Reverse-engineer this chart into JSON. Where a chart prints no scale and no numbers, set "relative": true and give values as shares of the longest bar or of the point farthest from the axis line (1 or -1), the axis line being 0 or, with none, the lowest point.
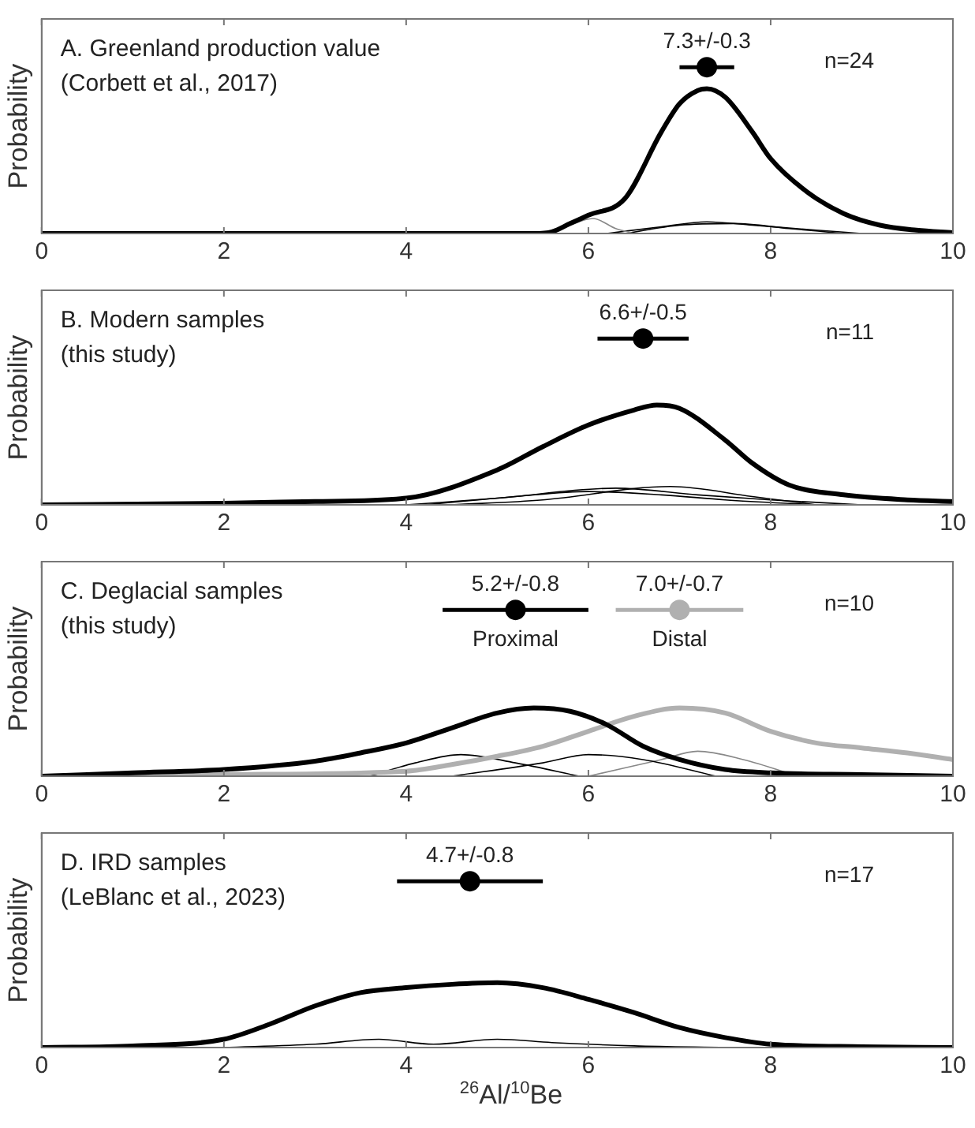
{
  "chart_data": [
    {
      "type": "line",
      "title": "A. Greenland production value",
      "subtitle": "(Corbett et al., 2017)",
      "ylabel": "Probability",
      "relative": true,
      "tick_labels": "x",
      "xlim": [
        0,
        10
      ],
      "xticks": [
        0,
        2,
        4,
        6,
        8,
        10
      ],
      "annotations": [
        {
          "text": "7.3+/-0.3",
          "x": 7.3,
          "y": 1
        },
        "n=24"
      ],
      "series": [
        {
          "color": "#000000",
          "x": [
            0,
            5.4,
            5.6,
            5.8,
            6.0,
            6.4,
            6.8,
            7.0,
            7.2,
            7.3,
            7.5,
            7.8,
            8.0,
            8.4,
            8.8,
            9.2,
            9.6,
            10
          ],
          "values": [
            0,
            0,
            0.01,
            0.06,
            0.11,
            0.21,
            0.61,
            0.78,
            0.86,
            0.87,
            0.82,
            0.61,
            0.45,
            0.25,
            0.12,
            0.05,
            0.02,
            0.005
          ]
        },
        {
          "color": "#888888",
          "x": [
            5.6,
            5.8,
            6.05,
            6.3,
            6.5
          ],
          "values": [
            0,
            0.05,
            0.09,
            0.03,
            0
          ]
        },
        {
          "color": "#000000",
          "x": [
            6.2,
            6.8,
            7.3,
            7.8,
            8.5,
            9.0
          ],
          "values": [
            0,
            0.04,
            0.07,
            0.05,
            0.02,
            0
          ]
        },
        {
          "color": "#000000",
          "x": [
            6.4,
            7.0,
            7.6,
            8.2,
            8.8
          ],
          "values": [
            0,
            0.05,
            0.06,
            0.03,
            0
          ]
        },
        {
          "type": "scatter",
          "marker": "circle",
          "color": "#000000",
          "x": [
            7.3
          ],
          "values": [
            1
          ],
          "xerrors": [
            0.3
          ]
        }
      ]
    },
    {
      "type": "line",
      "title": "B. Modern samples",
      "subtitle": "(this study)",
      "ylabel": "Probability",
      "relative": true,
      "tick_labels": "x",
      "xlim": [
        0,
        10
      ],
      "xticks": [
        0,
        2,
        4,
        6,
        8,
        10
      ],
      "annotations": [
        {
          "text": "6.6+/-0.5",
          "x": 6.6,
          "y": 1
        },
        "n=11"
      ],
      "series": [
        {
          "color": "#000000",
          "x": [
            0,
            2,
            3,
            4,
            5,
            5.5,
            6,
            6.5,
            6.75,
            7,
            7.5,
            7.8,
            8.2,
            8.8,
            9.5,
            10
          ],
          "values": [
            0,
            0.01,
            0.02,
            0.04,
            0.21,
            0.35,
            0.48,
            0.57,
            0.6,
            0.58,
            0.39,
            0.25,
            0.12,
            0.06,
            0.03,
            0.02
          ]
        },
        {
          "color": "#000000",
          "x": [
            4,
            5,
            6.3,
            7.2,
            8,
            9
          ],
          "values": [
            0,
            0.04,
            0.1,
            0.06,
            0.03,
            0
          ]
        },
        {
          "color": "#000000",
          "x": [
            4.5,
            5.5,
            6.9,
            7.8,
            8.5
          ],
          "values": [
            0,
            0.03,
            0.11,
            0.05,
            0
          ]
        },
        {
          "color": "#000000",
          "x": [
            4.2,
            5.2,
            6.0,
            6.8,
            7.5,
            8.5
          ],
          "values": [
            0,
            0.05,
            0.08,
            0.06,
            0.03,
            0
          ]
        },
        {
          "type": "scatter",
          "marker": "circle",
          "color": "#000000",
          "x": [
            6.6
          ],
          "values": [
            1
          ],
          "xerrors": [
            0.5
          ]
        }
      ]
    },
    {
      "type": "line",
      "title": "C. Deglacial samples",
      "subtitle": "(this study)",
      "ylabel": "Probability",
      "relative": true,
      "tick_labels": "x",
      "xlim": [
        0,
        10
      ],
      "xticks": [
        0,
        2,
        4,
        6,
        8,
        10
      ],
      "annotations": [
        {
          "text": "5.2+/-0.8",
          "x": 5.2,
          "y": 1
        },
        {
          "text": "7.0+/-0.7",
          "x": 7.0,
          "y": 1
        },
        "n=10"
      ],
      "series": [
        {
          "color": "#000000",
          "x": [
            0,
            1,
            2,
            3,
            3.5,
            4,
            4.5,
            5,
            5.4,
            5.8,
            6.2,
            6.6,
            7,
            7.5,
            8,
            9,
            10
          ],
          "values": [
            0,
            0.02,
            0.04,
            0.09,
            0.14,
            0.2,
            0.29,
            0.38,
            0.41,
            0.39,
            0.31,
            0.18,
            0.1,
            0.04,
            0.02,
            0.01,
            0
          ]
        },
        {
          "color": "#b0b0b0",
          "x": [
            0,
            2,
            4,
            4.5,
            5,
            5.5,
            6,
            6.5,
            7,
            7.5,
            8,
            8.5,
            9,
            9.5,
            10
          ],
          "values": [
            0,
            0.01,
            0.03,
            0.07,
            0.12,
            0.18,
            0.27,
            0.36,
            0.41,
            0.38,
            0.27,
            0.2,
            0.17,
            0.14,
            0.1
          ]
        },
        {
          "color": "#000000",
          "x": [
            3.6,
            4.1,
            4.6,
            5.2,
            5.9
          ],
          "values": [
            0,
            0.08,
            0.13,
            0.08,
            0
          ]
        },
        {
          "color": "#000000",
          "x": [
            4.5,
            5.5,
            6.0,
            6.6,
            7.4
          ],
          "values": [
            0,
            0.08,
            0.13,
            0.1,
            0
          ]
        },
        {
          "color": "#888888",
          "x": [
            6,
            6.8,
            7.2,
            7.7,
            8.3
          ],
          "values": [
            0,
            0.1,
            0.15,
            0.1,
            0
          ]
        },
        {
          "type": "scatter",
          "marker": "circle",
          "name": "Proximal",
          "color": "#000000",
          "x": [
            5.2
          ],
          "values": [
            1
          ],
          "xerrors": [
            0.8
          ]
        },
        {
          "type": "scatter",
          "marker": "circle",
          "name": "Distal",
          "color": "#b0b0b0",
          "x": [
            7.0
          ],
          "values": [
            1
          ],
          "xerrors": [
            0.7
          ]
        }
      ]
    },
    {
      "type": "line",
      "title": "D. IRD samples",
      "subtitle": "(LeBlanc et al., 2023)",
      "ylabel": "Probability",
      "xlabel": "$^{26}$Al/$^{10}$Be",
      "relative": true,
      "tick_labels": "x",
      "xlim": [
        0,
        10
      ],
      "xticks": [
        0,
        2,
        4,
        6,
        8,
        10
      ],
      "annotations": [
        {
          "text": "4.7+/-0.8",
          "x": 4.7,
          "y": 1
        },
        "n=17"
      ],
      "series": [
        {
          "color": "#000000",
          "x": [
            0,
            1,
            2,
            2.5,
            3,
            3.5,
            4,
            4.5,
            5,
            5.5,
            6,
            6.5,
            7,
            7.5,
            8,
            9,
            10
          ],
          "values": [
            0,
            0.01,
            0.05,
            0.14,
            0.25,
            0.33,
            0.36,
            0.38,
            0.39,
            0.36,
            0.29,
            0.21,
            0.12,
            0.06,
            0.02,
            0.005,
            0
          ]
        },
        {
          "color": "#000000",
          "x": [
            2,
            3,
            3.7,
            4.3,
            5,
            5.6,
            6.5,
            7.5
          ],
          "values": [
            0,
            0.02,
            0.05,
            0.02,
            0.05,
            0.03,
            0.01,
            0
          ]
        },
        {
          "type": "scatter",
          "marker": "circle",
          "color": "#000000",
          "x": [
            4.7
          ],
          "values": [
            1
          ],
          "xerrors": [
            0.8
          ]
        }
      ]
    }
  ]
}
